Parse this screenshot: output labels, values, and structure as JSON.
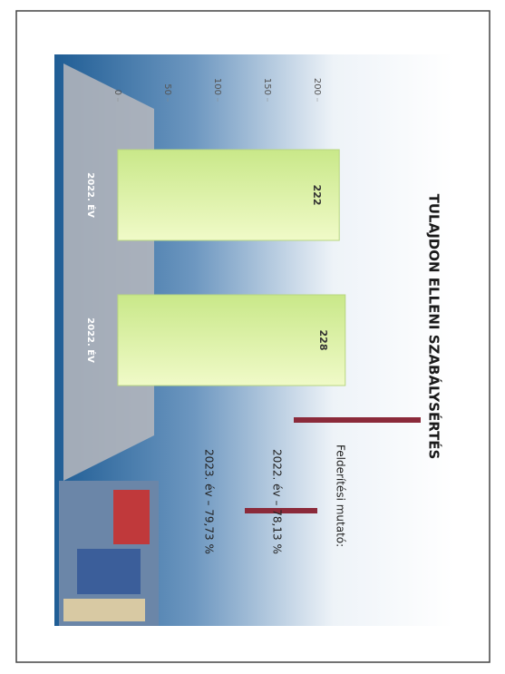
{
  "chart_data": {
    "type": "bar",
    "title": "TULAJDON ELLENI SZABÁLYSÉRTÉS",
    "categories": [
      "2022. ÉV",
      "2022. ÉV"
    ],
    "values": [
      222,
      228
    ],
    "color": "#dff3a6",
    "ylim": [
      0,
      250
    ],
    "yticks": [
      0,
      50,
      100,
      150,
      200
    ],
    "annotations": [
      "Felderítési mutató:",
      "2022. év   –   78,13 %",
      "2023. év   –   79,73 %"
    ]
  }
}
